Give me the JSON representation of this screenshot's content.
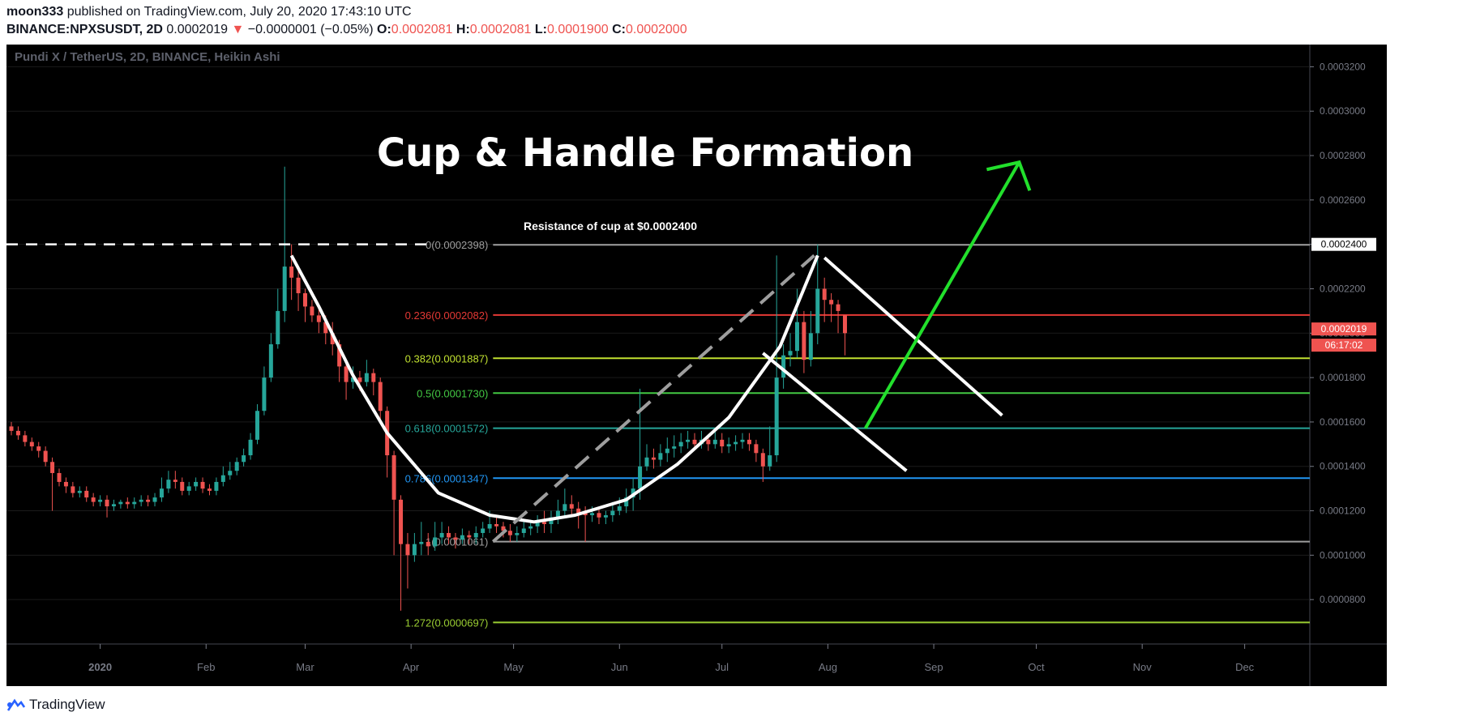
{
  "header": {
    "publisher": "moon333",
    "published_text": "published on TradingView.com, July 20, 2020 17:43:10 UTC",
    "symbol": "BINANCE:NPXSUSDT, 2D",
    "last": "0.0002019",
    "change": "−0.0000001 (−0.05%)",
    "o_label": "O:",
    "o_value": "0.0002081",
    "h_label": "H:",
    "h_value": "0.0002081",
    "l_label": "L:",
    "l_value": "0.0001900",
    "c_label": "C:",
    "c_value": "0.0002000"
  },
  "footer": {
    "brand": "TradingView"
  },
  "chart_data": {
    "type": "candlestick",
    "chart_style": "Heikin Ashi",
    "series_label": "Pundi X / TetherUS, 2D, BINANCE, Heikin Ashi",
    "title": "Cup & Handle Formation",
    "annotation": "Resistance of cup at $0.0002400",
    "ylim": [
      6e-05,
      0.00033
    ],
    "y_ticks": [
      "0.0003200",
      "0.0003000",
      "0.0002800",
      "0.0002600",
      "0.0002400",
      "0.0002200",
      "0.0002000",
      "0.0001800",
      "0.0001600",
      "0.0001400",
      "0.0001200",
      "0.0001000",
      "0.0000800"
    ],
    "x_ticks": [
      "2020",
      "Feb",
      "Mar",
      "Apr",
      "May",
      "Jun",
      "Jul",
      "Aug",
      "Sep",
      "Oct",
      "Nov",
      "Dec"
    ],
    "x_tick_days": [
      1,
      32,
      61,
      92,
      122,
      153,
      183,
      214,
      245,
      275,
      306,
      336
    ],
    "xlim_days": [
      -25,
      347
    ],
    "price_label": "0.0002019",
    "countdown_label": "06:17:02",
    "resistance_label": "0.0002400",
    "resistance_value": 0.00024,
    "fib_levels": [
      {
        "label": "0(0.0002398)",
        "value": 0.0002398,
        "color": "#9e9e9e"
      },
      {
        "label": "0.236(0.0002082)",
        "value": 0.0002082,
        "color": "#e53935"
      },
      {
        "label": "0.382(0.0001887)",
        "value": 0.0001887,
        "color": "#c0e030"
      },
      {
        "label": "0.5(0.0001730)",
        "value": 0.000173,
        "color": "#43c843"
      },
      {
        "label": "0.618(0.0001572)",
        "value": 0.0001572,
        "color": "#26a69a"
      },
      {
        "label": "0.786(0.0001347)",
        "value": 0.0001347,
        "color": "#2196f3"
      },
      {
        "label": "1(0.0001061)",
        "value": 0.0001061,
        "color": "#9e9e9e"
      },
      {
        "label": "1.272(0.0000697)",
        "value": 6.97e-05,
        "color": "#9acd32"
      }
    ],
    "candles": [
      {
        "d": -25,
        "o": 0.000158,
        "c": 0.000156,
        "h": 0.00016,
        "l": 0.000154
      },
      {
        "d": -23,
        "o": 0.000156,
        "c": 0.000154,
        "h": 0.000158,
        "l": 0.000152
      },
      {
        "d": -21,
        "o": 0.000154,
        "c": 0.000151,
        "h": 0.000156,
        "l": 0.000149
      },
      {
        "d": -19,
        "o": 0.000151,
        "c": 0.000149,
        "h": 0.000153,
        "l": 0.000147
      },
      {
        "d": -17,
        "o": 0.000149,
        "c": 0.000147,
        "h": 0.000151,
        "l": 0.000144
      },
      {
        "d": -15,
        "o": 0.000147,
        "c": 0.000142,
        "h": 0.000149,
        "l": 0.00014
      },
      {
        "d": -13,
        "o": 0.000142,
        "c": 0.000137,
        "h": 0.000144,
        "l": 0.00012
      },
      {
        "d": -11,
        "o": 0.000137,
        "c": 0.000133,
        "h": 0.000139,
        "l": 0.000131
      },
      {
        "d": -9,
        "o": 0.000133,
        "c": 0.000131,
        "h": 0.000135,
        "l": 0.000128
      },
      {
        "d": -7,
        "o": 0.000131,
        "c": 0.000128,
        "h": 0.000133,
        "l": 0.000126
      },
      {
        "d": -5,
        "o": 0.000128,
        "c": 0.000129,
        "h": 0.000131,
        "l": 0.000126
      },
      {
        "d": -3,
        "o": 0.000129,
        "c": 0.000126,
        "h": 0.000131,
        "l": 0.000124
      },
      {
        "d": -1,
        "o": 0.000126,
        "c": 0.000124,
        "h": 0.000128,
        "l": 0.000122
      },
      {
        "d": 1,
        "o": 0.000124,
        "c": 0.000125,
        "h": 0.000127,
        "l": 0.000122
      },
      {
        "d": 3,
        "o": 0.000125,
        "c": 0.000122,
        "h": 0.000127,
        "l": 0.000117
      },
      {
        "d": 5,
        "o": 0.000122,
        "c": 0.000123,
        "h": 0.000125,
        "l": 0.00012
      },
      {
        "d": 7,
        "o": 0.000123,
        "c": 0.000124,
        "h": 0.000125,
        "l": 0.000121
      },
      {
        "d": 9,
        "o": 0.000124,
        "c": 0.000123,
        "h": 0.000126,
        "l": 0.000121
      },
      {
        "d": 11,
        "o": 0.000123,
        "c": 0.000124,
        "h": 0.000126,
        "l": 0.000121
      },
      {
        "d": 13,
        "o": 0.000124,
        "c": 0.000125,
        "h": 0.000127,
        "l": 0.000122
      },
      {
        "d": 15,
        "o": 0.000125,
        "c": 0.000124,
        "h": 0.000127,
        "l": 0.000122
      },
      {
        "d": 17,
        "o": 0.000124,
        "c": 0.000126,
        "h": 0.000128,
        "l": 0.000122
      },
      {
        "d": 19,
        "o": 0.000126,
        "c": 0.00013,
        "h": 0.000135,
        "l": 0.000124
      },
      {
        "d": 21,
        "o": 0.00013,
        "c": 0.000134,
        "h": 0.000138,
        "l": 0.000128
      },
      {
        "d": 23,
        "o": 0.000134,
        "c": 0.000133,
        "h": 0.000138,
        "l": 0.00013
      },
      {
        "d": 25,
        "o": 0.000133,
        "c": 0.000129,
        "h": 0.000135,
        "l": 0.000127
      },
      {
        "d": 27,
        "o": 0.000129,
        "c": 0.000131,
        "h": 0.000133,
        "l": 0.000127
      },
      {
        "d": 29,
        "o": 0.000131,
        "c": 0.000133,
        "h": 0.000135,
        "l": 0.000129
      },
      {
        "d": 31,
        "o": 0.000133,
        "c": 0.00013,
        "h": 0.000135,
        "l": 0.000128
      },
      {
        "d": 33,
        "o": 0.00013,
        "c": 0.000129,
        "h": 0.000132,
        "l": 0.000127
      },
      {
        "d": 35,
        "o": 0.000129,
        "c": 0.000133,
        "h": 0.000135,
        "l": 0.000127
      },
      {
        "d": 37,
        "o": 0.000133,
        "c": 0.000136,
        "h": 0.00014,
        "l": 0.000131
      },
      {
        "d": 39,
        "o": 0.000136,
        "c": 0.000138,
        "h": 0.000142,
        "l": 0.000134
      },
      {
        "d": 41,
        "o": 0.000138,
        "c": 0.000142,
        "h": 0.000144,
        "l": 0.000136
      },
      {
        "d": 43,
        "o": 0.000142,
        "c": 0.000145,
        "h": 0.000148,
        "l": 0.00014
      },
      {
        "d": 45,
        "o": 0.000145,
        "c": 0.000152,
        "h": 0.000155,
        "l": 0.000143
      },
      {
        "d": 47,
        "o": 0.000152,
        "c": 0.000165,
        "h": 0.000168,
        "l": 0.00015
      },
      {
        "d": 49,
        "o": 0.000165,
        "c": 0.00018,
        "h": 0.000185,
        "l": 0.000163
      },
      {
        "d": 51,
        "o": 0.00018,
        "c": 0.000195,
        "h": 0.0002,
        "l": 0.000178
      },
      {
        "d": 53,
        "o": 0.000195,
        "c": 0.00021,
        "h": 0.00022,
        "l": 0.000193
      },
      {
        "d": 55,
        "o": 0.00021,
        "c": 0.00023,
        "h": 0.000275,
        "l": 0.000205
      },
      {
        "d": 57,
        "o": 0.00023,
        "c": 0.000225,
        "h": 0.00024,
        "l": 0.000215
      },
      {
        "d": 59,
        "o": 0.000225,
        "c": 0.000218,
        "h": 0.00023,
        "l": 0.00021
      },
      {
        "d": 61,
        "o": 0.000218,
        "c": 0.000212,
        "h": 0.00022,
        "l": 0.000205
      },
      {
        "d": 63,
        "o": 0.000212,
        "c": 0.000208,
        "h": 0.000215,
        "l": 0.000205
      },
      {
        "d": 65,
        "o": 0.000208,
        "c": 0.000205,
        "h": 0.000212,
        "l": 0.0002
      },
      {
        "d": 67,
        "o": 0.000205,
        "c": 0.0002,
        "h": 0.000208,
        "l": 0.000195
      },
      {
        "d": 69,
        "o": 0.0002,
        "c": 0.000195,
        "h": 0.000205,
        "l": 0.00019
      },
      {
        "d": 71,
        "o": 0.000195,
        "c": 0.000185,
        "h": 0.000197,
        "l": 0.000178
      },
      {
        "d": 73,
        "o": 0.000185,
        "c": 0.000178,
        "h": 0.000187,
        "l": 0.00017
      },
      {
        "d": 75,
        "o": 0.000178,
        "c": 0.00018,
        "h": 0.000185,
        "l": 0.000175
      },
      {
        "d": 77,
        "o": 0.00018,
        "c": 0.000178,
        "h": 0.000183,
        "l": 0.000174
      },
      {
        "d": 79,
        "o": 0.000178,
        "c": 0.000182,
        "h": 0.000188,
        "l": 0.000176
      },
      {
        "d": 81,
        "o": 0.000182,
        "c": 0.000178,
        "h": 0.000184,
        "l": 0.000172
      },
      {
        "d": 83,
        "o": 0.000178,
        "c": 0.000165,
        "h": 0.00018,
        "l": 0.00016
      },
      {
        "d": 85,
        "o": 0.000165,
        "c": 0.000145,
        "h": 0.000167,
        "l": 0.000135
      },
      {
        "d": 87,
        "o": 0.000145,
        "c": 0.000125,
        "h": 0.000147,
        "l": 0.0001
      },
      {
        "d": 89,
        "o": 0.000125,
        "c": 0.000105,
        "h": 0.000127,
        "l": 7.5e-05
      },
      {
        "d": 91,
        "o": 0.000105,
        "c": 0.0001,
        "h": 0.00011,
        "l": 8.5e-05
      },
      {
        "d": 93,
        "o": 0.0001,
        "c": 0.000105,
        "h": 0.00011,
        "l": 9.7e-05
      },
      {
        "d": 95,
        "o": 0.000105,
        "c": 0.000106,
        "h": 0.000115,
        "l": 0.0001
      },
      {
        "d": 97,
        "o": 0.000106,
        "c": 0.000104,
        "h": 0.00011,
        "l": 0.0001
      },
      {
        "d": 99,
        "o": 0.000104,
        "c": 0.000108,
        "h": 0.000115,
        "l": 0.000102
      },
      {
        "d": 101,
        "o": 0.000108,
        "c": 0.00011,
        "h": 0.000115,
        "l": 0.000105
      },
      {
        "d": 103,
        "o": 0.00011,
        "c": 0.000108,
        "h": 0.000113,
        "l": 0.000105
      },
      {
        "d": 105,
        "o": 0.000108,
        "c": 0.000107,
        "h": 0.00011,
        "l": 0.000103
      },
      {
        "d": 107,
        "o": 0.000107,
        "c": 0.000109,
        "h": 0.000112,
        "l": 0.000105
      },
      {
        "d": 109,
        "o": 0.000109,
        "c": 0.000108,
        "h": 0.000111,
        "l": 0.000105
      },
      {
        "d": 111,
        "o": 0.000108,
        "c": 0.00011,
        "h": 0.000113,
        "l": 0.000105
      },
      {
        "d": 113,
        "o": 0.00011,
        "c": 0.000112,
        "h": 0.000115,
        "l": 0.000108
      },
      {
        "d": 115,
        "o": 0.000112,
        "c": 0.000114,
        "h": 0.00012,
        "l": 0.00011
      },
      {
        "d": 117,
        "o": 0.000114,
        "c": 0.000113,
        "h": 0.000117,
        "l": 0.00011
      },
      {
        "d": 119,
        "o": 0.000113,
        "c": 0.000111,
        "h": 0.000115,
        "l": 0.000108
      },
      {
        "d": 121,
        "o": 0.000111,
        "c": 0.000109,
        "h": 0.000114,
        "l": 0.000106
      },
      {
        "d": 123,
        "o": 0.000109,
        "c": 0.00011,
        "h": 0.000113,
        "l": 0.000106
      },
      {
        "d": 125,
        "o": 0.00011,
        "c": 0.000112,
        "h": 0.000115,
        "l": 0.000108
      },
      {
        "d": 127,
        "o": 0.000112,
        "c": 0.000113,
        "h": 0.000116,
        "l": 0.000109
      },
      {
        "d": 129,
        "o": 0.000113,
        "c": 0.000115,
        "h": 0.000118,
        "l": 0.00011
      },
      {
        "d": 131,
        "o": 0.000115,
        "c": 0.000114,
        "h": 0.00012,
        "l": 0.00011
      },
      {
        "d": 133,
        "o": 0.000114,
        "c": 0.000117,
        "h": 0.00012,
        "l": 0.00011
      },
      {
        "d": 135,
        "o": 0.000117,
        "c": 0.00012,
        "h": 0.000125,
        "l": 0.000114
      },
      {
        "d": 137,
        "o": 0.00012,
        "c": 0.000123,
        "h": 0.00013,
        "l": 0.000117
      },
      {
        "d": 139,
        "o": 0.000123,
        "c": 0.000121,
        "h": 0.000127,
        "l": 0.000118
      },
      {
        "d": 141,
        "o": 0.000121,
        "c": 0.000119,
        "h": 0.000124,
        "l": 0.000112
      },
      {
        "d": 143,
        "o": 0.000119,
        "c": 0.000118,
        "h": 0.000122,
        "l": 0.000106
      },
      {
        "d": 145,
        "o": 0.000118,
        "c": 0.000119,
        "h": 0.000122,
        "l": 0.000115
      },
      {
        "d": 147,
        "o": 0.000119,
        "c": 0.000117,
        "h": 0.000121,
        "l": 0.000114
      },
      {
        "d": 149,
        "o": 0.000117,
        "c": 0.000118,
        "h": 0.00012,
        "l": 0.000114
      },
      {
        "d": 151,
        "o": 0.000118,
        "c": 0.00012,
        "h": 0.000124,
        "l": 0.000115
      },
      {
        "d": 153,
        "o": 0.00012,
        "c": 0.000122,
        "h": 0.000126,
        "l": 0.000118
      },
      {
        "d": 155,
        "o": 0.000122,
        "c": 0.000126,
        "h": 0.00013,
        "l": 0.000119
      },
      {
        "d": 157,
        "o": 0.000126,
        "c": 0.00013,
        "h": 0.000135,
        "l": 0.00012
      },
      {
        "d": 159,
        "o": 0.00013,
        "c": 0.00014,
        "h": 0.000175,
        "l": 0.000125
      },
      {
        "d": 161,
        "o": 0.00014,
        "c": 0.000144,
        "h": 0.00015,
        "l": 0.000138
      },
      {
        "d": 163,
        "o": 0.000144,
        "c": 0.000143,
        "h": 0.000148,
        "l": 0.000139
      },
      {
        "d": 165,
        "o": 0.000143,
        "c": 0.000146,
        "h": 0.00015,
        "l": 0.00014
      },
      {
        "d": 167,
        "o": 0.000146,
        "c": 0.000148,
        "h": 0.000153,
        "l": 0.000142
      },
      {
        "d": 169,
        "o": 0.000148,
        "c": 0.000149,
        "h": 0.000154,
        "l": 0.000144
      },
      {
        "d": 171,
        "o": 0.000149,
        "c": 0.000151,
        "h": 0.000155,
        "l": 0.000146
      },
      {
        "d": 173,
        "o": 0.000151,
        "c": 0.000152,
        "h": 0.000156,
        "l": 0.000148
      },
      {
        "d": 175,
        "o": 0.000152,
        "c": 0.00015,
        "h": 0.000155,
        "l": 0.000148
      },
      {
        "d": 177,
        "o": 0.00015,
        "c": 0.000152,
        "h": 0.000156,
        "l": 0.000148
      },
      {
        "d": 179,
        "o": 0.000152,
        "c": 0.00015,
        "h": 0.000154,
        "l": 0.000147
      },
      {
        "d": 181,
        "o": 0.00015,
        "c": 0.000152,
        "h": 0.000156,
        "l": 0.000148
      },
      {
        "d": 183,
        "o": 0.000152,
        "c": 0.000149,
        "h": 0.000155,
        "l": 0.000146
      },
      {
        "d": 185,
        "o": 0.000149,
        "c": 0.00015,
        "h": 0.000153,
        "l": 0.000146
      },
      {
        "d": 187,
        "o": 0.00015,
        "c": 0.000151,
        "h": 0.000154,
        "l": 0.000147
      },
      {
        "d": 189,
        "o": 0.000151,
        "c": 0.000152,
        "h": 0.000155,
        "l": 0.000148
      },
      {
        "d": 191,
        "o": 0.000152,
        "c": 0.00015,
        "h": 0.000155,
        "l": 0.000147
      },
      {
        "d": 193,
        "o": 0.00015,
        "c": 0.000146,
        "h": 0.000152,
        "l": 0.000142
      },
      {
        "d": 195,
        "o": 0.000146,
        "c": 0.00014,
        "h": 0.000148,
        "l": 0.000133
      },
      {
        "d": 197,
        "o": 0.00014,
        "c": 0.000145,
        "h": 0.000158,
        "l": 0.000138
      },
      {
        "d": 199,
        "o": 0.000145,
        "c": 0.00018,
        "h": 0.000235,
        "l": 0.000142
      },
      {
        "d": 201,
        "o": 0.00018,
        "c": 0.00019,
        "h": 0.000195,
        "l": 0.000175
      },
      {
        "d": 203,
        "o": 0.00019,
        "c": 0.000192,
        "h": 0.0002,
        "l": 0.000185
      },
      {
        "d": 205,
        "o": 0.000192,
        "c": 0.000205,
        "h": 0.00022,
        "l": 0.000189
      },
      {
        "d": 207,
        "o": 0.000205,
        "c": 0.000188,
        "h": 0.00021,
        "l": 0.000182
      },
      {
        "d": 209,
        "o": 0.000188,
        "c": 0.0002,
        "h": 0.00021,
        "l": 0.000185
      },
      {
        "d": 211,
        "o": 0.0002,
        "c": 0.00022,
        "h": 0.00024,
        "l": 0.000195
      },
      {
        "d": 213,
        "o": 0.00022,
        "c": 0.000215,
        "h": 0.000225,
        "l": 0.000205
      },
      {
        "d": 215,
        "o": 0.000215,
        "c": 0.000213,
        "h": 0.000218,
        "l": 0.000205
      },
      {
        "d": 217,
        "o": 0.000213,
        "c": 0.00021,
        "h": 0.000215,
        "l": 0.0002
      },
      {
        "d": 219,
        "o": 0.0002081,
        "c": 0.0002,
        "h": 0.0002081,
        "l": 0.00019
      }
    ]
  }
}
